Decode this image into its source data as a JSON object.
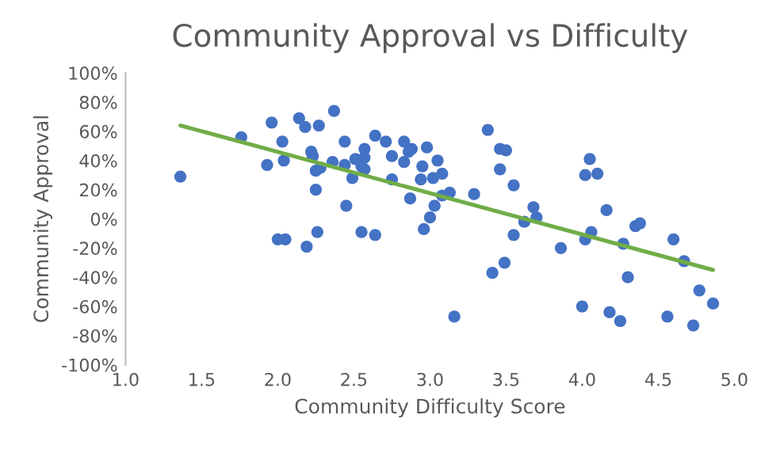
{
  "chart_data": {
    "type": "scatter",
    "title": "Community Approval vs Difficulty",
    "xlabel": "Community Difficulty Score",
    "ylabel": "Community Approval",
    "xlim": [
      1.0,
      5.0
    ],
    "ylim": [
      -100,
      100
    ],
    "xticks": [
      {
        "value": 1.0,
        "label": "1.0"
      },
      {
        "value": 1.5,
        "label": "1.5"
      },
      {
        "value": 2.0,
        "label": "2.0"
      },
      {
        "value": 2.5,
        "label": "2.5"
      },
      {
        "value": 3.0,
        "label": "3.0"
      },
      {
        "value": 3.5,
        "label": "3.5"
      },
      {
        "value": 4.0,
        "label": "4.0"
      },
      {
        "value": 4.5,
        "label": "4.5"
      },
      {
        "value": 5.0,
        "label": "5.0"
      }
    ],
    "yticks": [
      {
        "value": -100,
        "label": "-100%"
      },
      {
        "value": -80,
        "label": "-80%"
      },
      {
        "value": -60,
        "label": "-60%"
      },
      {
        "value": -40,
        "label": "-40%"
      },
      {
        "value": -20,
        "label": "-20%"
      },
      {
        "value": 0,
        "label": "0%"
      },
      {
        "value": 20,
        "label": "20%"
      },
      {
        "value": 40,
        "label": "40%"
      },
      {
        "value": 60,
        "label": "60%"
      },
      {
        "value": 80,
        "label": "80%"
      },
      {
        "value": 100,
        "label": "100%"
      }
    ],
    "grid": false,
    "marker": "circle",
    "series": [
      {
        "color": "#4472c4",
        "x": [
          1.36,
          1.76,
          1.93,
          1.96,
          2.0,
          2.03,
          2.04,
          2.05,
          2.14,
          2.18,
          2.19,
          2.22,
          2.23,
          2.25,
          2.25,
          2.26,
          2.27,
          2.28,
          2.36,
          2.37,
          2.44,
          2.44,
          2.45,
          2.49,
          2.51,
          2.55,
          2.55,
          2.57,
          2.57,
          2.57,
          2.64,
          2.64,
          2.71,
          2.75,
          2.75,
          2.83,
          2.87,
          2.83,
          2.88,
          2.86,
          2.98,
          2.95,
          3.05,
          2.94,
          3.02,
          3.08,
          3.03,
          3.0,
          2.96,
          3.08,
          3.13,
          3.16,
          3.29,
          3.38,
          3.46,
          3.5,
          3.46,
          3.55,
          3.41,
          3.49,
          3.55,
          3.68,
          3.7,
          3.62,
          3.86,
          4.02,
          4.06,
          4.0,
          4.05,
          4.02,
          4.1,
          4.16,
          4.18,
          4.25,
          4.27,
          4.3,
          4.35,
          4.38,
          4.56,
          4.6,
          4.67,
          4.73,
          4.77,
          4.86
        ],
        "values": [
          29,
          56,
          37,
          66,
          -14,
          53,
          40,
          -14,
          69,
          63,
          -19,
          46,
          43,
          33,
          20,
          -9,
          64,
          35,
          39,
          74,
          53,
          37,
          9,
          28,
          41,
          36,
          -9,
          48,
          42,
          34,
          57,
          -11,
          53,
          43,
          27,
          39,
          14,
          53,
          48,
          46,
          49,
          36,
          40,
          27,
          28,
          31,
          9,
          1,
          -7,
          16,
          18,
          -67,
          17,
          61,
          48,
          47,
          34,
          23,
          -37,
          -30,
          -11,
          8,
          1,
          -2,
          -20,
          -14,
          -9,
          -60,
          41,
          30,
          31,
          6,
          -64,
          -70,
          -17,
          -40,
          -5,
          -3,
          -67,
          -14,
          -29,
          -73,
          -49,
          -58
        ]
      },
      {
        "type": "line",
        "color": "#70ad47",
        "marker": "none",
        "x": [
          1.36,
          4.86
        ],
        "values": [
          64,
          -35
        ]
      }
    ]
  }
}
